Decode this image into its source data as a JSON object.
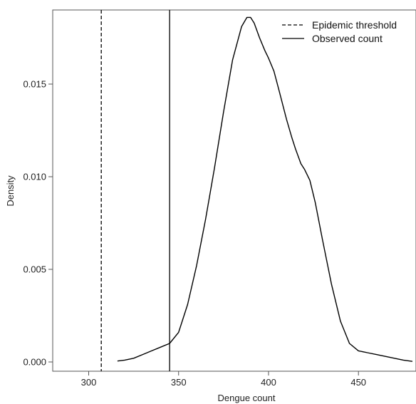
{
  "chart_data": {
    "type": "line",
    "title": "",
    "xlabel": "Dengue count",
    "ylabel": "Density",
    "xlim": [
      280,
      482
    ],
    "ylim": [
      -0.0005,
      0.019
    ],
    "xticks": [
      300,
      350,
      400,
      450
    ],
    "xtick_labels": [
      "300",
      "350",
      "400",
      "450"
    ],
    "yticks": [
      0.0,
      0.005,
      0.01,
      0.015
    ],
    "ytick_labels": [
      "0.000",
      "0.005",
      "0.010",
      "0.015"
    ],
    "grid": false,
    "legend": {
      "position": "top-right",
      "entries": [
        {
          "label": "Epidemic threshold",
          "style": "dashed"
        },
        {
          "label": "Observed count",
          "style": "solid"
        }
      ]
    },
    "reference_lines": [
      {
        "name": "Epidemic threshold",
        "x": 307,
        "style": "dashed"
      },
      {
        "name": "Observed count",
        "x": 345,
        "style": "solid"
      }
    ],
    "series": [
      {
        "x": [
          316,
          320,
          325,
          330,
          335,
          340,
          345,
          350,
          355,
          360,
          365,
          370,
          375,
          380,
          385,
          388,
          390,
          392,
          395,
          398,
          400,
          403,
          406,
          410,
          413,
          415,
          418,
          420,
          423,
          426,
          430,
          435,
          440,
          445,
          450,
          455,
          460,
          465,
          470,
          475,
          480
        ],
        "y": [
          5e-05,
          0.0001,
          0.0002,
          0.0004,
          0.0006,
          0.0008,
          0.001,
          0.0016,
          0.0031,
          0.0052,
          0.0077,
          0.0105,
          0.0135,
          0.0163,
          0.0181,
          0.0186,
          0.0186,
          0.0183,
          0.0175,
          0.0168,
          0.0164,
          0.0157,
          0.0146,
          0.0131,
          0.0121,
          0.0115,
          0.0107,
          0.0104,
          0.0098,
          0.0086,
          0.0066,
          0.0042,
          0.0022,
          0.001,
          0.0006,
          0.0005,
          0.0004,
          0.0003,
          0.0002,
          0.0001,
          3e-05
        ]
      }
    ],
    "line_color": "#000000"
  }
}
